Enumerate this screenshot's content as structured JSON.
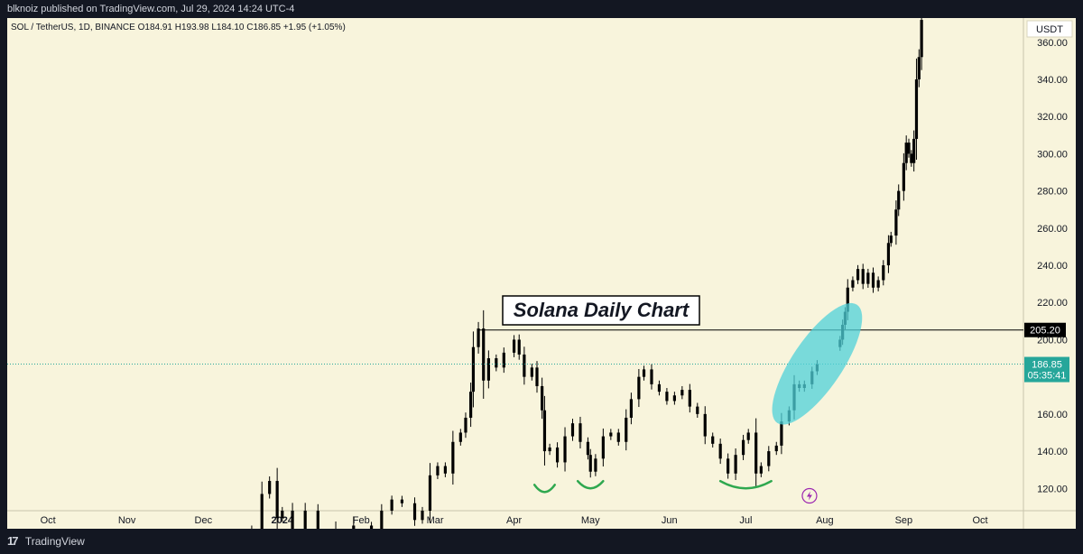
{
  "header": {
    "published": "blknoiz published on TradingView.com, Jul 29, 2024 14:24 UTC-4"
  },
  "symbol_info": "SOL / TetherUS, 1D, BINANCE  O184.91  H193.98  L184.10  C186.85  +1.95 (+1.05%)",
  "footer": {
    "logo": "17",
    "brand": "TradingView"
  },
  "colors": {
    "background": "#f8f4dc",
    "candle": "#000000",
    "price_line": "#26a69a",
    "highlight": "#4fd1d9",
    "smile": "#2fa84f",
    "event_icon": "#9c27b0",
    "level_line": "#000000"
  },
  "chart_data": {
    "type": "candlestick",
    "currency_label": "USDT",
    "x_ticks": [
      {
        "label": "Oct",
        "date": "2023-10-01"
      },
      {
        "label": "Nov",
        "date": "2023-11-01"
      },
      {
        "label": "Dec",
        "date": "2023-12-01"
      },
      {
        "label": "2024",
        "date": "2024-01-01",
        "bold": true
      },
      {
        "label": "Feb",
        "date": "2024-02-01"
      },
      {
        "label": "Mar",
        "date": "2024-03-01"
      },
      {
        "label": "Apr",
        "date": "2024-04-01"
      },
      {
        "label": "May",
        "date": "2024-05-01"
      },
      {
        "label": "Jun",
        "date": "2024-06-01"
      },
      {
        "label": "Jul",
        "date": "2024-07-01"
      },
      {
        "label": "Aug",
        "date": "2024-08-01"
      },
      {
        "label": "Sep",
        "date": "2024-09-01"
      },
      {
        "label": "Oct",
        "date": "2024-10-01"
      }
    ],
    "y_ticks": [
      120,
      140,
      160,
      180,
      200,
      220,
      240,
      260,
      280,
      300,
      320,
      340,
      360
    ],
    "ylim": [
      108,
      373
    ],
    "xlim": [
      "2023-09-15",
      "2024-10-18"
    ],
    "annotation_text": "Solana Daily Chart",
    "resistance_level": {
      "value": 205.2,
      "label": "205.20",
      "start": "2024-03-18"
    },
    "last_price": {
      "value": 186.85,
      "label": "186.85",
      "countdown": "05:35:41"
    },
    "actual_series": [
      {
        "date": "2023-12-20",
        "value": 98
      },
      {
        "date": "2023-12-24",
        "value": 117
      },
      {
        "date": "2023-12-27",
        "value": 124
      },
      {
        "date": "2023-12-30",
        "value": 104
      },
      {
        "date": "2024-01-01",
        "value": 108
      },
      {
        "date": "2024-01-05",
        "value": 96
      },
      {
        "date": "2024-01-10",
        "value": 108
      },
      {
        "date": "2024-01-15",
        "value": 98
      },
      {
        "date": "2024-01-22",
        "value": 86
      },
      {
        "date": "2024-01-29",
        "value": 100
      },
      {
        "date": "2024-02-05",
        "value": 98
      },
      {
        "date": "2024-02-09",
        "value": 108
      },
      {
        "date": "2024-02-13",
        "value": 114
      },
      {
        "date": "2024-02-17",
        "value": 112
      },
      {
        "date": "2024-02-22",
        "value": 103
      },
      {
        "date": "2024-02-25",
        "value": 108
      },
      {
        "date": "2024-02-28",
        "value": 127
      },
      {
        "date": "2024-03-02",
        "value": 132
      },
      {
        "date": "2024-03-05",
        "value": 128
      },
      {
        "date": "2024-03-08",
        "value": 145
      },
      {
        "date": "2024-03-11",
        "value": 150
      },
      {
        "date": "2024-03-13",
        "value": 158
      },
      {
        "date": "2024-03-15",
        "value": 172
      },
      {
        "date": "2024-03-16",
        "value": 196
      },
      {
        "date": "2024-03-18",
        "value": 206
      },
      {
        "date": "2024-03-20",
        "value": 178
      },
      {
        "date": "2024-03-22",
        "value": 190
      },
      {
        "date": "2024-03-25",
        "value": 185
      },
      {
        "date": "2024-03-28",
        "value": 193
      },
      {
        "date": "2024-04-01",
        "value": 200
      },
      {
        "date": "2024-04-03",
        "value": 192
      },
      {
        "date": "2024-04-05",
        "value": 180
      },
      {
        "date": "2024-04-08",
        "value": 185
      },
      {
        "date": "2024-04-10",
        "value": 175
      },
      {
        "date": "2024-04-12",
        "value": 162
      },
      {
        "date": "2024-04-13",
        "value": 140
      },
      {
        "date": "2024-04-15",
        "value": 142
      },
      {
        "date": "2024-04-18",
        "value": 134
      },
      {
        "date": "2024-04-21",
        "value": 148
      },
      {
        "date": "2024-04-24",
        "value": 155
      },
      {
        "date": "2024-04-27",
        "value": 145
      },
      {
        "date": "2024-04-30",
        "value": 138
      },
      {
        "date": "2024-05-01",
        "value": 129
      },
      {
        "date": "2024-05-03",
        "value": 136
      },
      {
        "date": "2024-05-06",
        "value": 148
      },
      {
        "date": "2024-05-09",
        "value": 150
      },
      {
        "date": "2024-05-12",
        "value": 145
      },
      {
        "date": "2024-05-15",
        "value": 158
      },
      {
        "date": "2024-05-17",
        "value": 168
      },
      {
        "date": "2024-05-20",
        "value": 180
      },
      {
        "date": "2024-05-22",
        "value": 184
      },
      {
        "date": "2024-05-25",
        "value": 176
      },
      {
        "date": "2024-05-28",
        "value": 172
      },
      {
        "date": "2024-05-31",
        "value": 167
      },
      {
        "date": "2024-06-03",
        "value": 170
      },
      {
        "date": "2024-06-06",
        "value": 173
      },
      {
        "date": "2024-06-09",
        "value": 164
      },
      {
        "date": "2024-06-12",
        "value": 160
      },
      {
        "date": "2024-06-15",
        "value": 148
      },
      {
        "date": "2024-06-18",
        "value": 144
      },
      {
        "date": "2024-06-21",
        "value": 136
      },
      {
        "date": "2024-06-24",
        "value": 128
      },
      {
        "date": "2024-06-27",
        "value": 138
      },
      {
        "date": "2024-06-30",
        "value": 146
      },
      {
        "date": "2024-07-02",
        "value": 150
      },
      {
        "date": "2024-07-05",
        "value": 128
      },
      {
        "date": "2024-07-07",
        "value": 132
      },
      {
        "date": "2024-07-10",
        "value": 140
      },
      {
        "date": "2024-07-13",
        "value": 143
      },
      {
        "date": "2024-07-15",
        "value": 156
      },
      {
        "date": "2024-07-18",
        "value": 162
      },
      {
        "date": "2024-07-20",
        "value": 176
      },
      {
        "date": "2024-07-22",
        "value": 174
      },
      {
        "date": "2024-07-24",
        "value": 176
      },
      {
        "date": "2024-07-27",
        "value": 183
      },
      {
        "date": "2024-07-29",
        "value": 187
      }
    ],
    "projection_series": [
      {
        "date": "2024-08-07",
        "value": 200
      },
      {
        "date": "2024-08-08",
        "value": 208
      },
      {
        "date": "2024-08-09",
        "value": 215
      },
      {
        "date": "2024-08-10",
        "value": 228
      },
      {
        "date": "2024-08-12",
        "value": 232
      },
      {
        "date": "2024-08-14",
        "value": 238
      },
      {
        "date": "2024-08-16",
        "value": 230
      },
      {
        "date": "2024-08-18",
        "value": 236
      },
      {
        "date": "2024-08-20",
        "value": 228
      },
      {
        "date": "2024-08-22",
        "value": 232
      },
      {
        "date": "2024-08-24",
        "value": 240
      },
      {
        "date": "2024-08-26",
        "value": 252
      },
      {
        "date": "2024-08-27",
        "value": 256
      },
      {
        "date": "2024-08-29",
        "value": 270
      },
      {
        "date": "2024-08-30",
        "value": 280
      },
      {
        "date": "2024-09-01",
        "value": 295
      },
      {
        "date": "2024-09-02",
        "value": 306
      },
      {
        "date": "2024-09-03",
        "value": 300
      },
      {
        "date": "2024-09-04",
        "value": 295
      },
      {
        "date": "2024-09-05",
        "value": 308
      },
      {
        "date": "2024-09-06",
        "value": 340
      },
      {
        "date": "2024-09-07",
        "value": 352
      },
      {
        "date": "2024-09-08",
        "value": 372
      }
    ],
    "highlight_ellipse": {
      "date": "2024-07-29",
      "value": 187,
      "width_days": 10,
      "value_span": 30,
      "rotation_deg": -56
    },
    "smiles": [
      {
        "date": "2024-04-13",
        "value": 119,
        "half_width_days": 4
      },
      {
        "date": "2024-05-01",
        "value": 121,
        "half_width_days": 5
      },
      {
        "date": "2024-07-01",
        "value": 121,
        "half_width_days": 10
      }
    ],
    "event_marker": {
      "date": "2024-07-26",
      "value": 116
    }
  }
}
